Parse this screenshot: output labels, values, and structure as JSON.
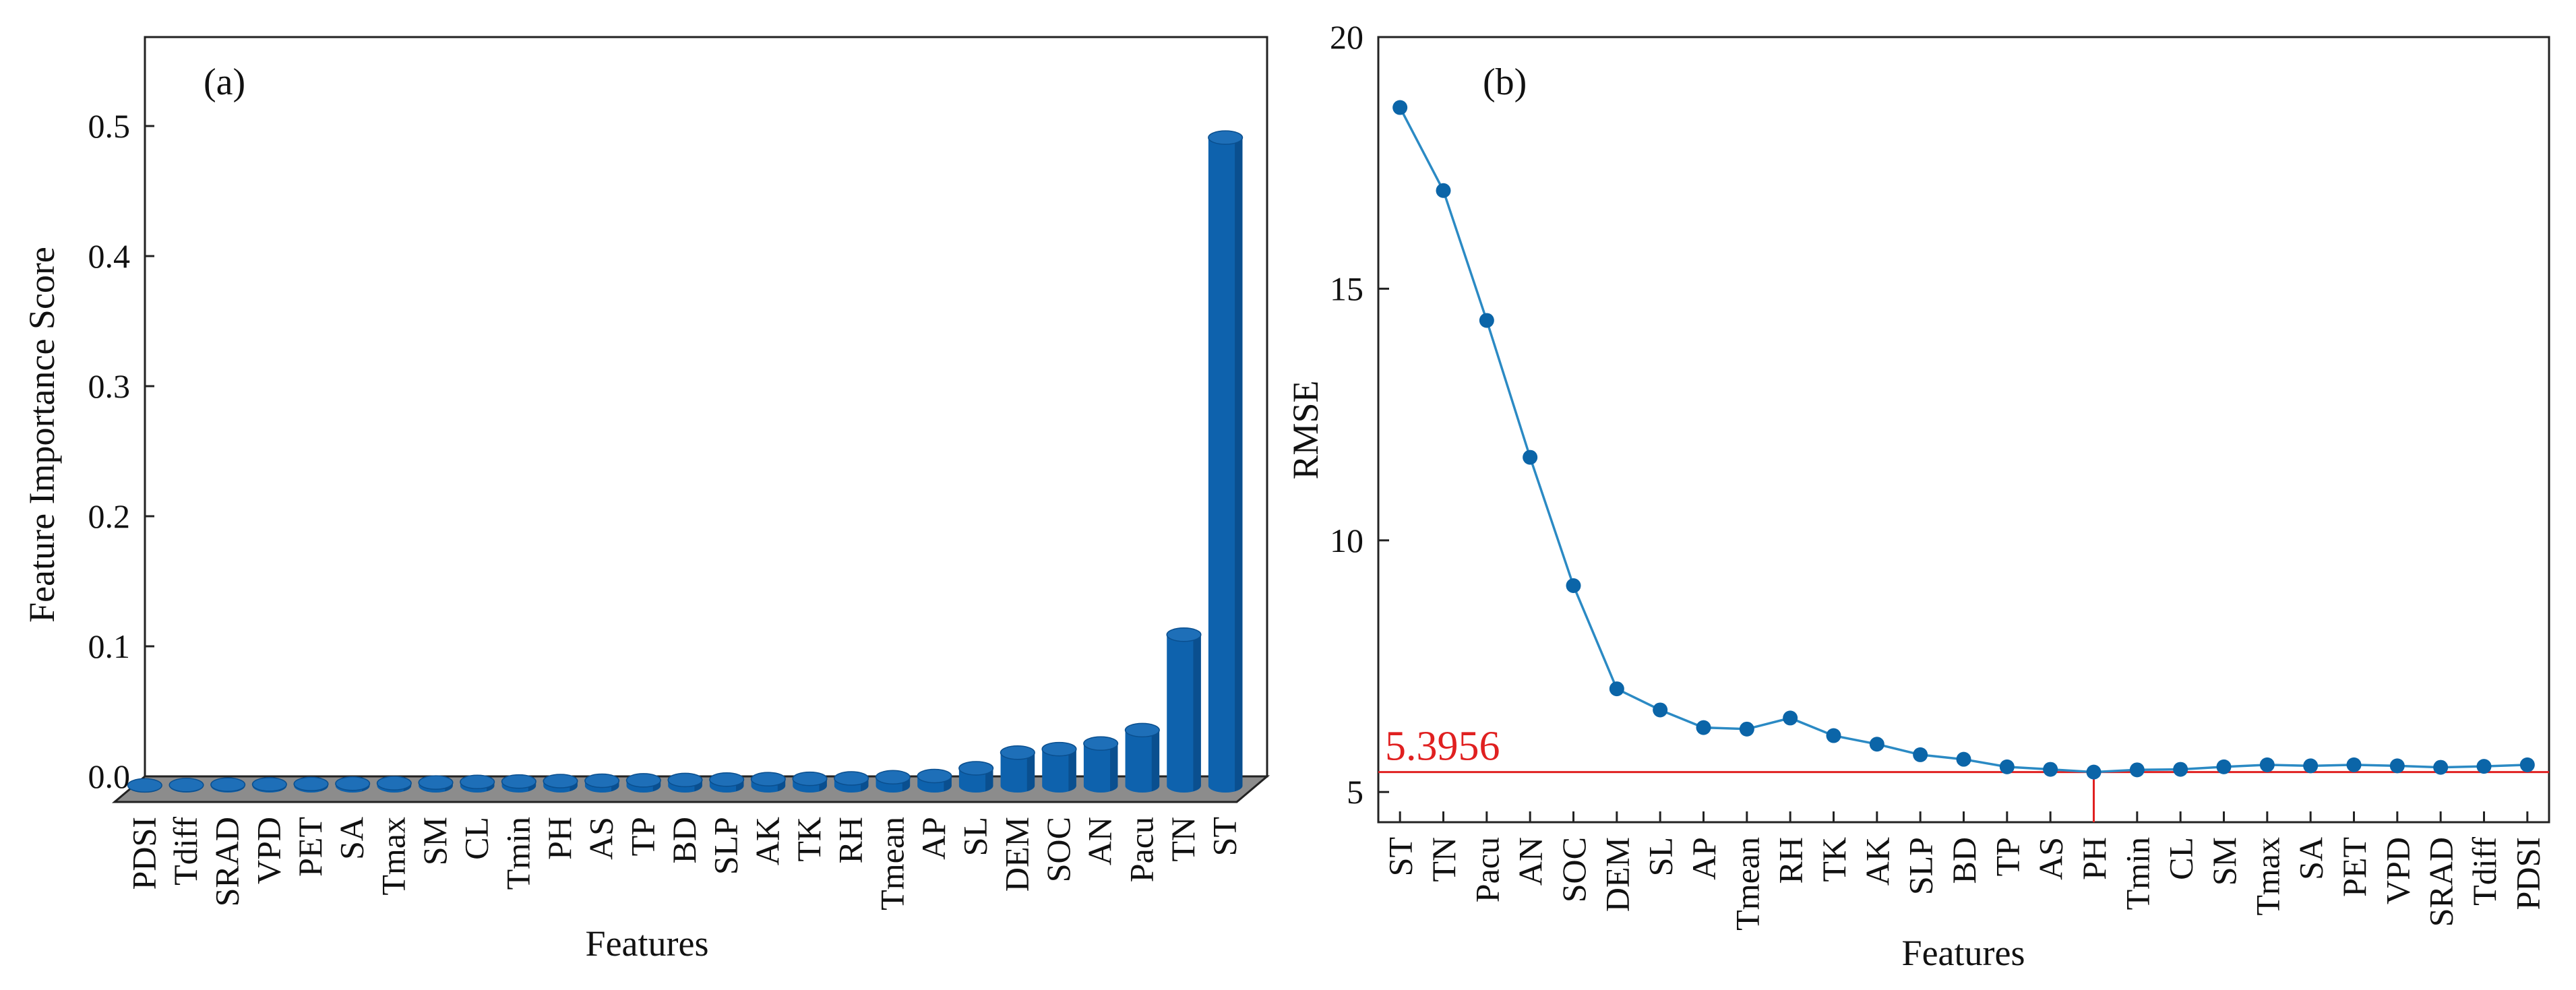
{
  "colors": {
    "bar_top": "#1e6fb8",
    "bar_front": "#0e62ad",
    "bar_side": "#0a4f8f",
    "floor": "#8c8c8c",
    "line": "#2b8ac4",
    "marker": "#0b65a8",
    "ref": "#e02020",
    "ref_text": "#e02020"
  },
  "chart_data": [
    {
      "type": "bar",
      "panel_label": "(a)",
      "title": "",
      "xlabel": "Features",
      "ylabel": "Feature Importance Score",
      "ylim": [
        0,
        0.55
      ],
      "yticks": [
        "0.0",
        "0.1",
        "0.2",
        "0.3",
        "0.4",
        "0.5"
      ],
      "ytick_values": [
        0,
        0.1,
        0.2,
        0.3,
        0.4,
        0.5
      ],
      "categories": [
        "PDSI",
        "Tdiff",
        "SRAD",
        "VPD",
        "PET",
        "SA",
        "Tmax",
        "SM",
        "CL",
        "Tmin",
        "PH",
        "AS",
        "TP",
        "BD",
        "SLP",
        "AK",
        "TK",
        "RH",
        "Tmean",
        "AP",
        "SL",
        "DEM",
        "SOC",
        "AN",
        "Pacu",
        "TN",
        "ST"
      ],
      "values": [
        0.0003,
        0.0006,
        0.0009,
        0.0011,
        0.0014,
        0.0017,
        0.002,
        0.0025,
        0.003,
        0.0033,
        0.0036,
        0.0039,
        0.0042,
        0.0045,
        0.0048,
        0.0051,
        0.0054,
        0.0057,
        0.0066,
        0.0075,
        0.0135,
        0.0255,
        0.0282,
        0.0325,
        0.0428,
        0.1162,
        0.4984
      ]
    },
    {
      "type": "line",
      "panel_label": "(b)",
      "title": "",
      "xlabel": "Features",
      "ylabel": "RMSE",
      "ylim": [
        4.4,
        20
      ],
      "yticks": [
        "5",
        "10",
        "15",
        "20"
      ],
      "ytick_values": [
        5,
        10,
        15,
        20
      ],
      "categories": [
        "ST",
        "TN",
        "Pacu",
        "AN",
        "SOC",
        "DEM",
        "SL",
        "AP",
        "Tmean",
        "RH",
        "TK",
        "AK",
        "SLP",
        "BD",
        "TP",
        "AS",
        "PH",
        "Tmin",
        "CL",
        "SM",
        "Tmax",
        "SA",
        "PET",
        "VPD",
        "SRAD",
        "Tdiff",
        "PDSI"
      ],
      "values": [
        18.6,
        16.95,
        14.37,
        11.65,
        9.1,
        7.05,
        6.63,
        6.28,
        6.25,
        6.47,
        6.12,
        5.95,
        5.74,
        5.65,
        5.5,
        5.45,
        5.3956,
        5.44,
        5.45,
        5.5,
        5.54,
        5.52,
        5.54,
        5.52,
        5.49,
        5.51,
        5.54
      ],
      "reference_line": {
        "value": 5.3956,
        "label": "5.3956",
        "at_category": "PH"
      }
    }
  ]
}
